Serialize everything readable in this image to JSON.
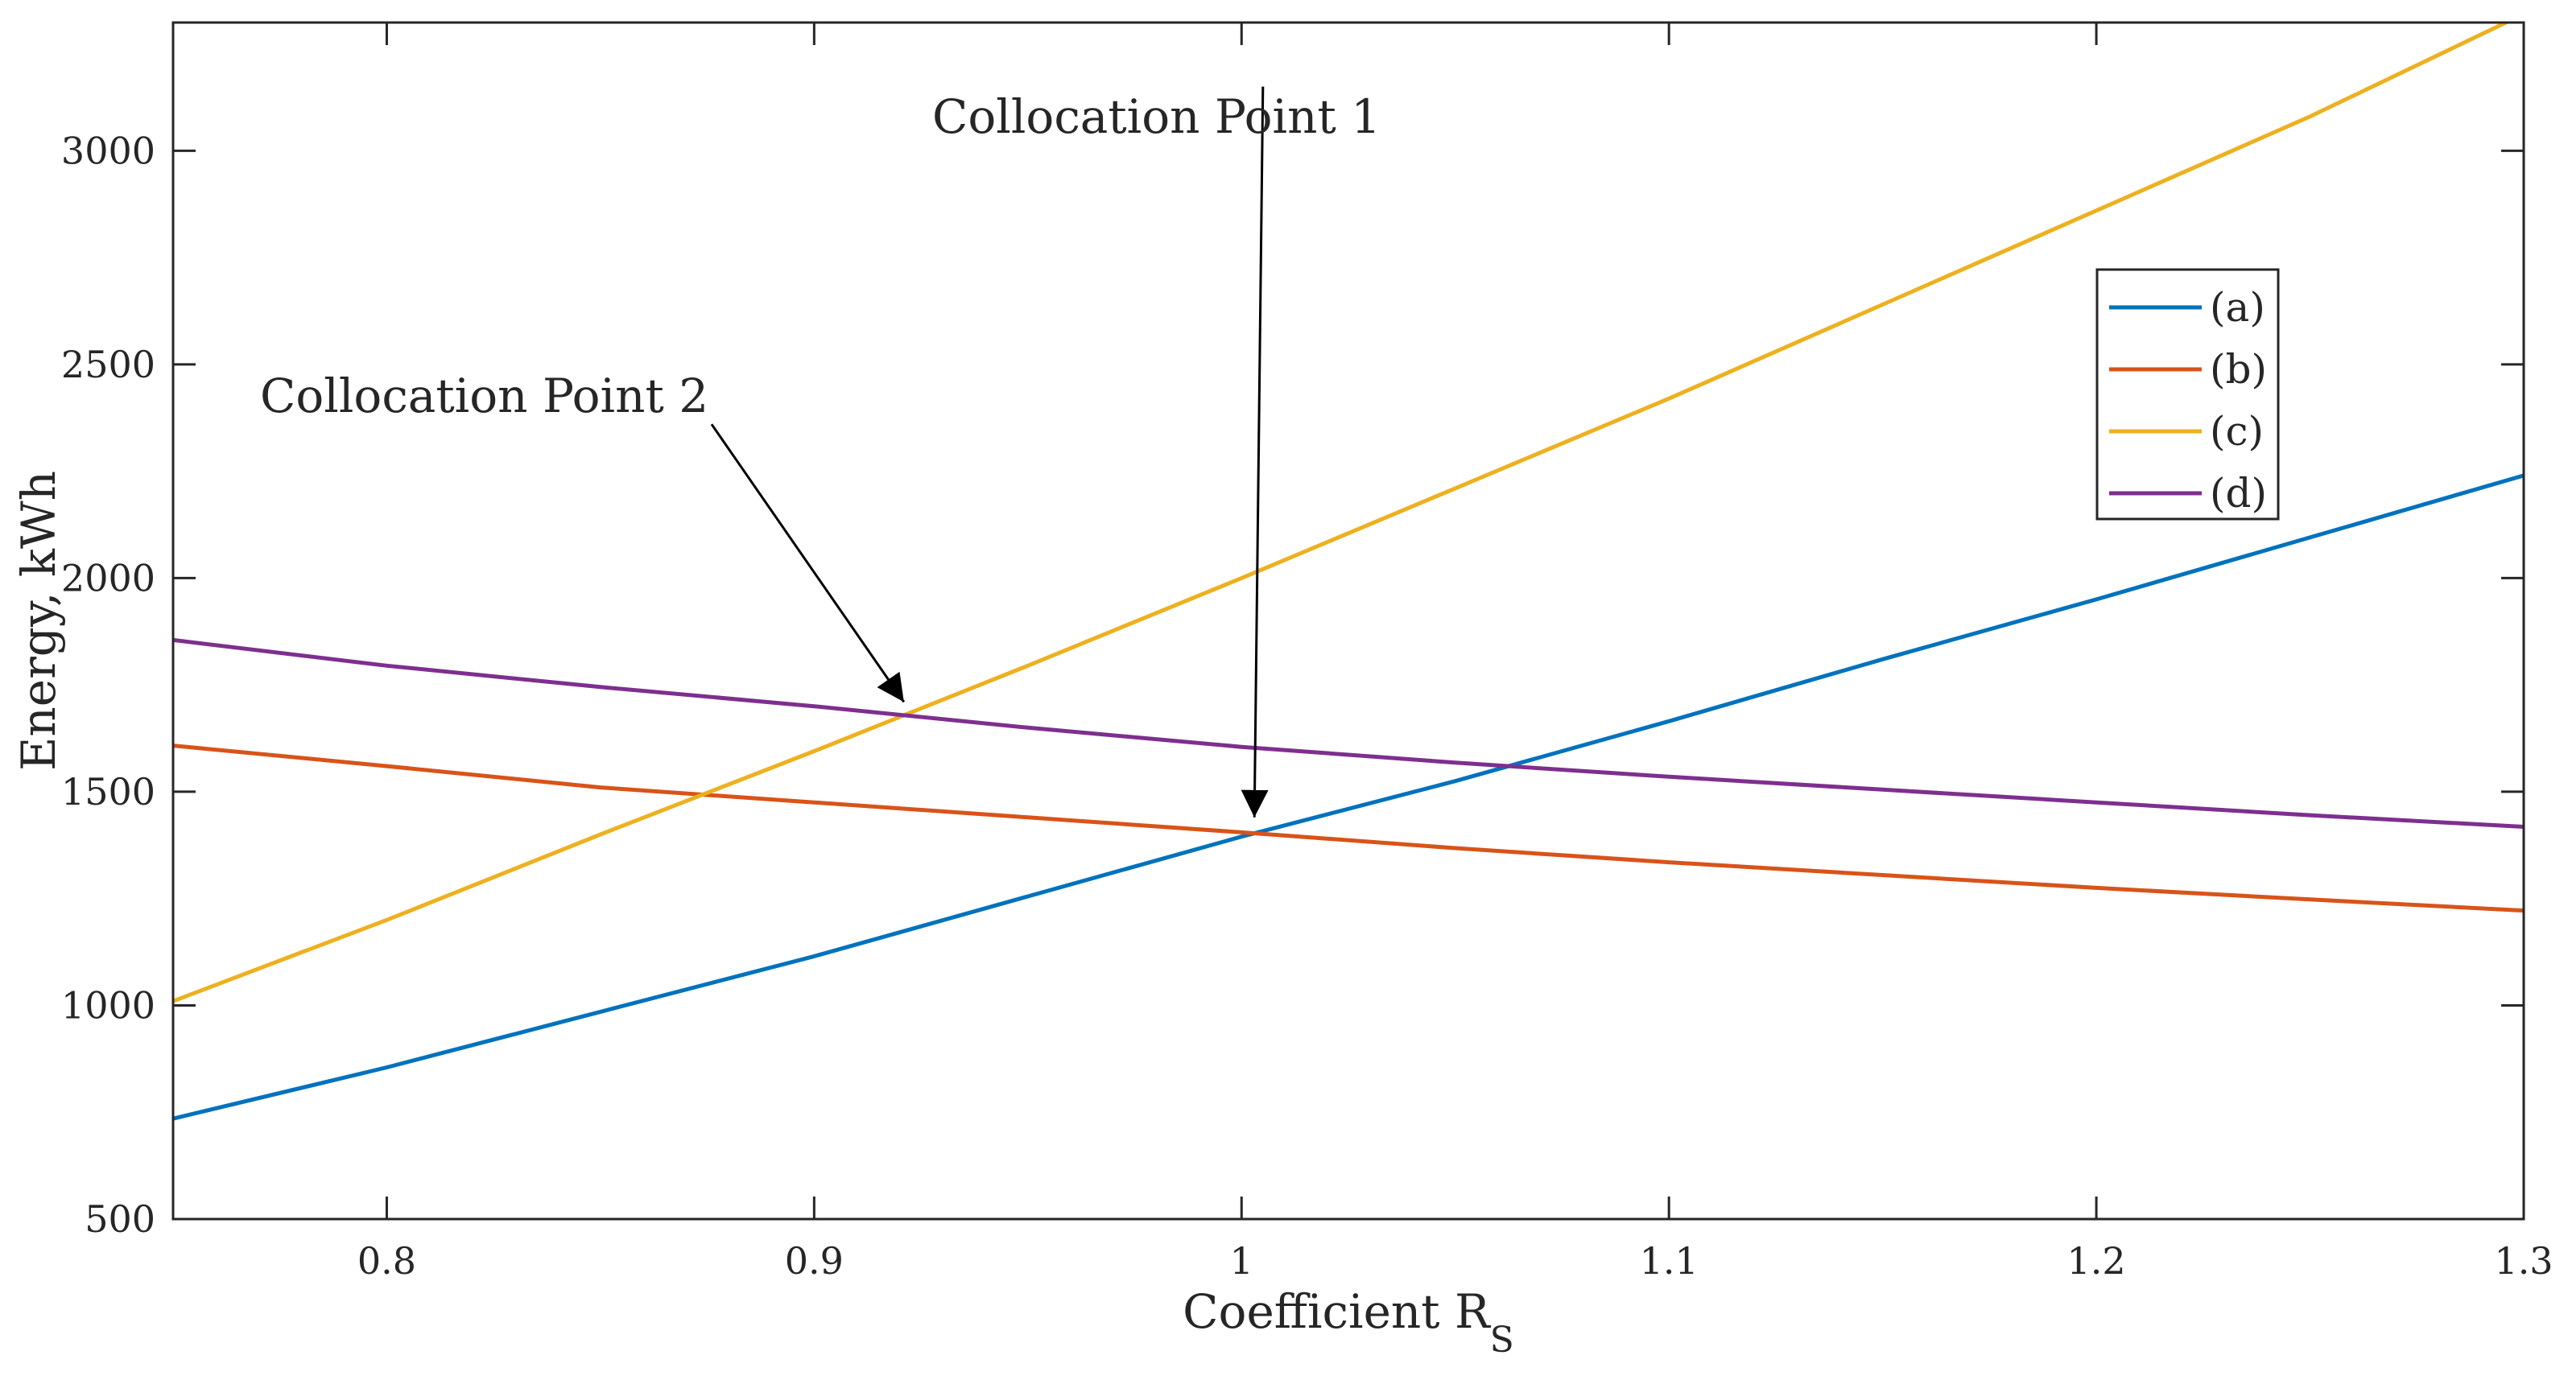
{
  "chart_data": {
    "type": "line",
    "title": "",
    "xlabel_main": "Coefficient R",
    "xlabel_sub": "S",
    "ylabel": "Energy, kWh",
    "xlim": [
      0.75,
      1.3
    ],
    "ylim": [
      500,
      3300
    ],
    "x_ticks": [
      0.8,
      0.9,
      1,
      1.1,
      1.2,
      1.3
    ],
    "x_tick_labels": [
      "0.8",
      "0.9",
      "1",
      "1.1",
      "1.2",
      "1.3"
    ],
    "y_ticks": [
      500,
      1000,
      1500,
      2000,
      2500,
      3000
    ],
    "y_tick_labels": [
      "500",
      "1000",
      "1500",
      "2000",
      "2500",
      "3000"
    ],
    "grid": false,
    "legend_position": "top-right",
    "series": [
      {
        "name": "(a)",
        "color": "#0072BD",
        "x": [
          0.75,
          0.8,
          0.85,
          0.9,
          0.95,
          1.0,
          1.05,
          1.1,
          1.15,
          1.2,
          1.25,
          1.3
        ],
        "y": [
          735,
          855,
          985,
          1115,
          1255,
          1395,
          1525,
          1665,
          1810,
          1950,
          2095,
          2240
        ]
      },
      {
        "name": "(b)",
        "color": "#D95319",
        "x": [
          0.75,
          0.8,
          0.85,
          0.9,
          0.95,
          1.0,
          1.05,
          1.1,
          1.15,
          1.2,
          1.25,
          1.3
        ],
        "y": [
          1608,
          1560,
          1510,
          1475,
          1440,
          1405,
          1368,
          1335,
          1305,
          1275,
          1248,
          1222
        ]
      },
      {
        "name": "(c)",
        "color": "#EDB120",
        "x": [
          0.75,
          0.8,
          0.85,
          0.9,
          0.95,
          1.0,
          1.05,
          1.1,
          1.15,
          1.2,
          1.25,
          1.3
        ],
        "y": [
          1010,
          1200,
          1400,
          1595,
          1795,
          2000,
          2210,
          2420,
          2640,
          2860,
          3080,
          3320
        ]
      },
      {
        "name": "(d)",
        "color": "#7E2F8E",
        "x": [
          0.75,
          0.8,
          0.85,
          0.9,
          0.95,
          1.0,
          1.05,
          1.1,
          1.15,
          1.2,
          1.25,
          1.3
        ],
        "y": [
          1855,
          1795,
          1745,
          1700,
          1650,
          1605,
          1568,
          1535,
          1505,
          1475,
          1445,
          1418
        ]
      }
    ],
    "annotations": [
      {
        "text": "Collocation Point 1",
        "tail": [
          1.005,
          3150
        ],
        "head": [
          1.003,
          1440
        ]
      },
      {
        "text": "Collocation Point 2",
        "tail": [
          0.876,
          2360
        ],
        "head": [
          0.921,
          1710
        ]
      }
    ]
  }
}
